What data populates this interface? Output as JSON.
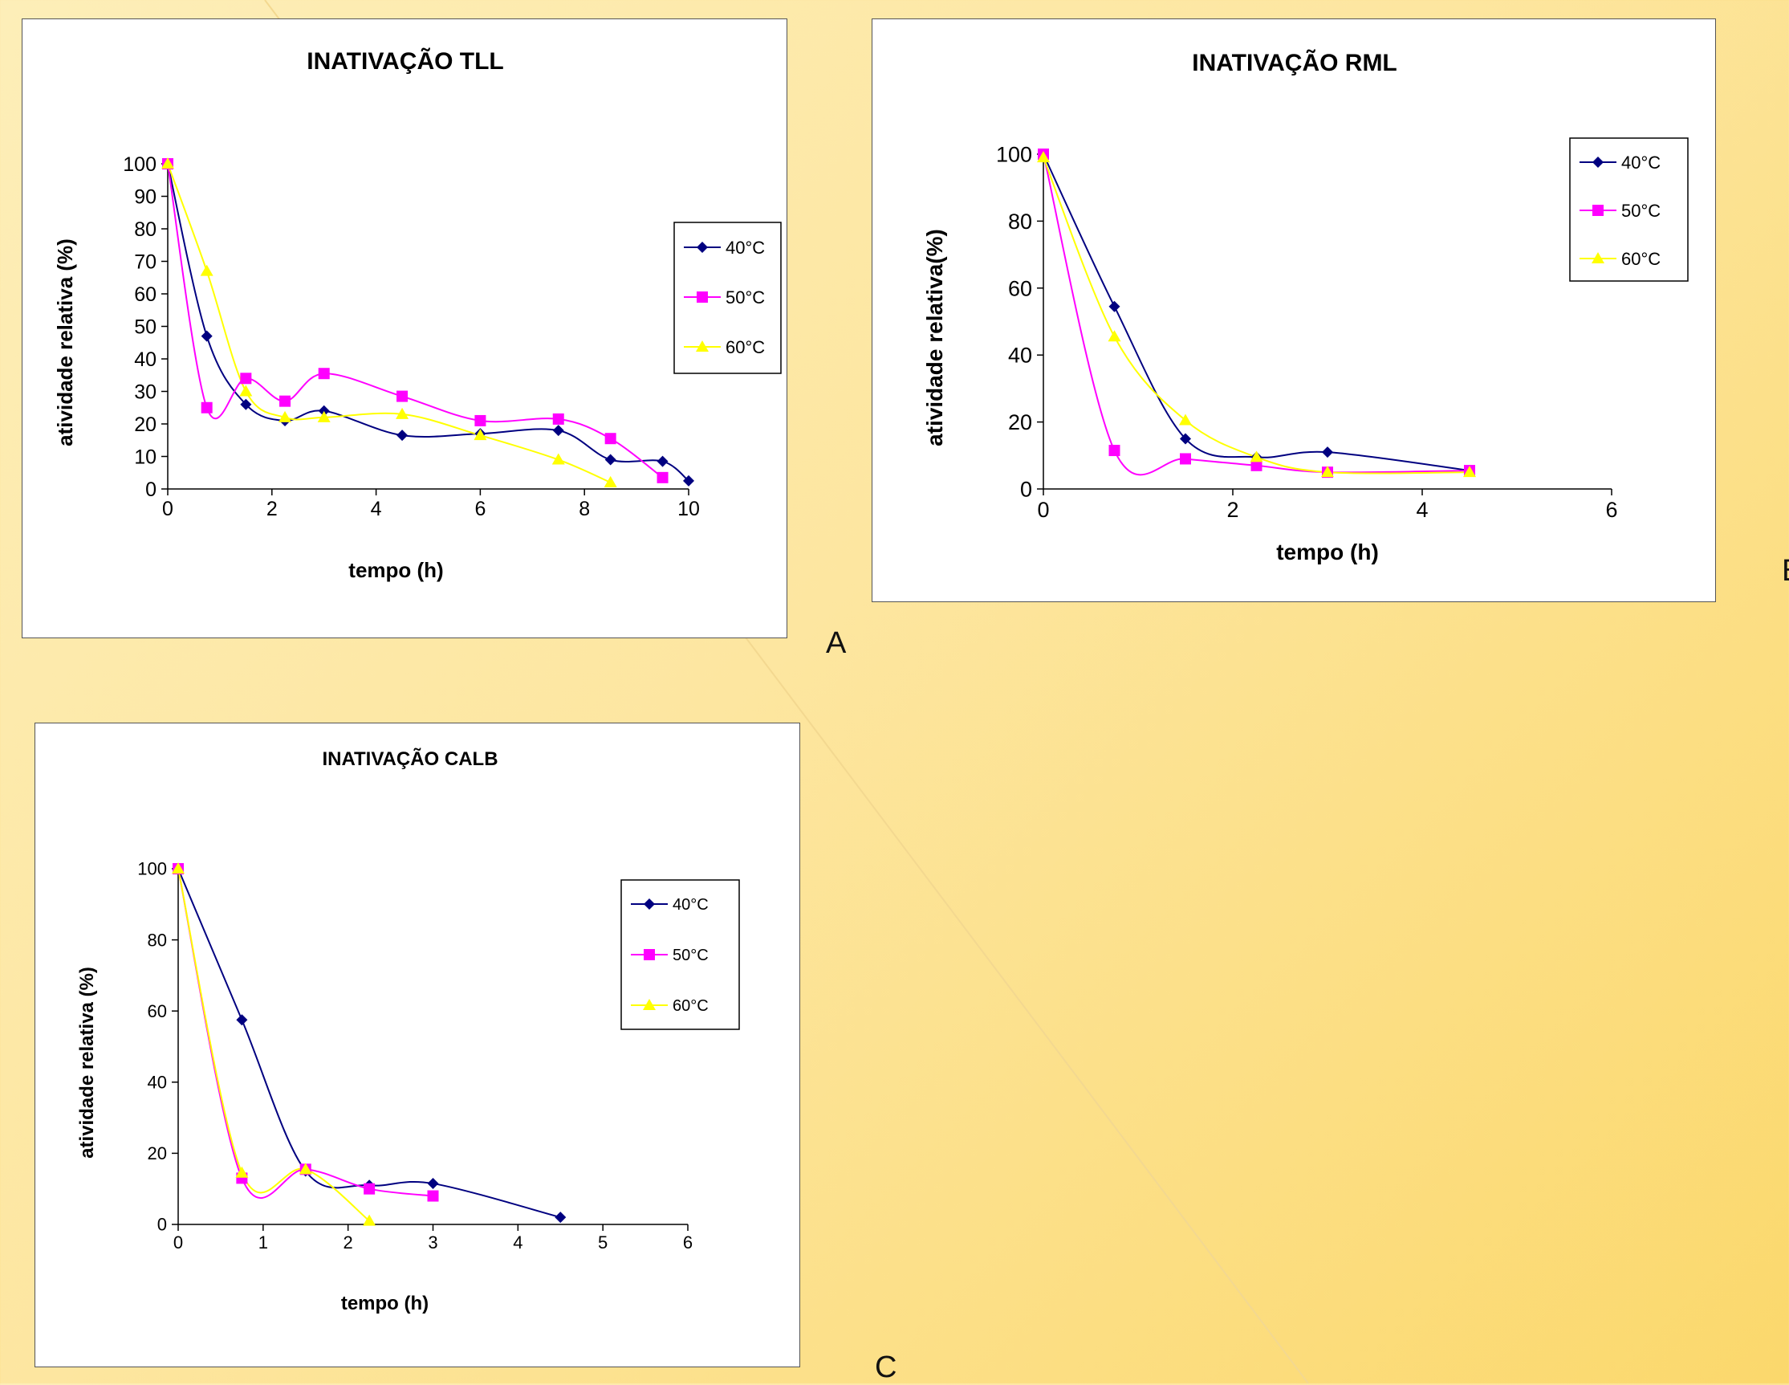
{
  "colors": {
    "s40": "#000080",
    "s50": "#ff00ff",
    "s60": "#ffff00"
  },
  "panel_labels": {
    "a": "A",
    "b": "B",
    "c": "C"
  },
  "chart_data": [
    {
      "type": "line",
      "title": "INATIVAÇÃO TLL",
      "xlabel": "tempo (h)",
      "ylabel": "atividade relativa (%)",
      "xlim": [
        0,
        10
      ],
      "ylim": [
        0,
        100
      ],
      "xticks": [
        0,
        2,
        4,
        6,
        8,
        10
      ],
      "yticks": [
        0,
        10,
        20,
        30,
        40,
        50,
        60,
        70,
        80,
        90,
        100
      ],
      "legend": "right",
      "series": [
        {
          "name": "40°C",
          "marker": "diamond",
          "x": [
            0,
            0.75,
            1.5,
            2.25,
            3,
            4.5,
            6,
            7.5,
            8.5,
            9.5,
            10
          ],
          "y": [
            100,
            47,
            26,
            21,
            24,
            16.5,
            17,
            18,
            9,
            8.5,
            2.5
          ]
        },
        {
          "name": "50°C",
          "marker": "square",
          "x": [
            0,
            0.75,
            1.5,
            2.25,
            3,
            4.5,
            6,
            7.5,
            8.5,
            9.5
          ],
          "y": [
            100,
            25,
            34,
            27,
            35.5,
            28.5,
            21,
            21.5,
            15.5,
            3.5
          ]
        },
        {
          "name": "60°C",
          "marker": "triangle",
          "x": [
            0,
            0.75,
            1.5,
            2.25,
            3,
            4.5,
            6,
            7.5,
            8.5
          ],
          "y": [
            100,
            67,
            30,
            22,
            22,
            23,
            16.5,
            9,
            2
          ]
        }
      ]
    },
    {
      "type": "line",
      "title": "INATIVAÇÃO RML",
      "xlabel": "tempo (h)",
      "ylabel": "atividade relativa(%)",
      "xlim": [
        0,
        6
      ],
      "ylim": [
        0,
        100
      ],
      "xticks": [
        0,
        2,
        4,
        6
      ],
      "yticks": [
        0,
        20,
        40,
        60,
        80,
        100
      ],
      "legend": "top-right",
      "series": [
        {
          "name": "40°C",
          "marker": "diamond",
          "x": [
            0,
            0.75,
            1.5,
            2.25,
            3,
            4.5
          ],
          "y": [
            100,
            54.5,
            15,
            9.5,
            11,
            5.5
          ]
        },
        {
          "name": "50°C",
          "marker": "square",
          "x": [
            0,
            0.75,
            1.5,
            2.25,
            3,
            4.5
          ],
          "y": [
            100,
            11.5,
            9,
            7,
            5,
            5.5
          ]
        },
        {
          "name": "60°C",
          "marker": "triangle",
          "x": [
            0,
            0.75,
            1.5,
            2.25,
            3,
            4.5
          ],
          "y": [
            99,
            45.5,
            20.5,
            9.5,
            5,
            5
          ]
        }
      ]
    },
    {
      "type": "line",
      "title": "INATIVAÇÃO CALB",
      "xlabel": "tempo (h)",
      "ylabel": "atividade relativa (%)",
      "xlim": [
        0,
        6
      ],
      "ylim": [
        0,
        100
      ],
      "xticks": [
        0,
        1,
        2,
        3,
        4,
        5,
        6
      ],
      "yticks": [
        0,
        20,
        40,
        60,
        80,
        100
      ],
      "legend": "top-right",
      "series": [
        {
          "name": "40°C",
          "marker": "diamond",
          "x": [
            0,
            0.75,
            1.5,
            2.25,
            3,
            4.5
          ],
          "y": [
            100,
            57.5,
            15,
            11,
            11.5,
            2
          ]
        },
        {
          "name": "50°C",
          "marker": "square",
          "x": [
            0,
            0.75,
            1.5,
            2.25,
            3
          ],
          "y": [
            100,
            13,
            15.5,
            10,
            8
          ]
        },
        {
          "name": "60°C",
          "marker": "triangle",
          "x": [
            0,
            0.75,
            1.5,
            2.25
          ],
          "y": [
            100,
            14.5,
            15.5,
            1
          ]
        }
      ]
    }
  ]
}
